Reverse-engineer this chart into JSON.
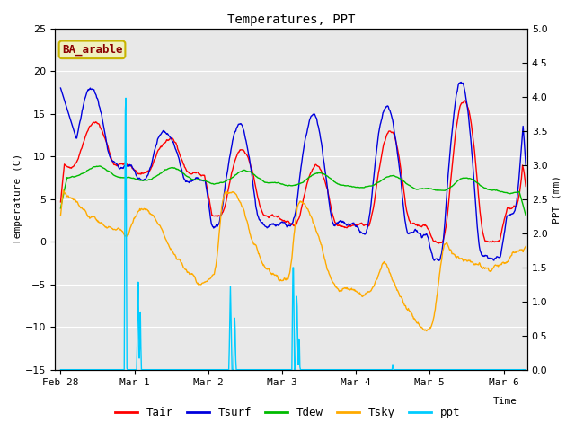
{
  "title": "Temperatures, PPT",
  "xlabel": "Time",
  "ylabel_left": "Temperature (C)",
  "ylabel_right": "PPT (mm)",
  "ylim_left": [
    -15,
    25
  ],
  "ylim_right": [
    0.0,
    5.0
  ],
  "yticks_left": [
    -15,
    -10,
    -5,
    0,
    5,
    10,
    15,
    20,
    25
  ],
  "yticks_right": [
    0.0,
    0.5,
    1.0,
    1.5,
    2.0,
    2.5,
    3.0,
    3.5,
    4.0,
    4.5,
    5.0
  ],
  "bg_color": "#e8e8e8",
  "site_label": "BA_arable",
  "site_label_color": "#8B0000",
  "site_label_bg": "#f0f0c0",
  "site_label_border": "#c8b400",
  "colors": {
    "Tair": "#ff0000",
    "Tsurf": "#0000dd",
    "Tdew": "#00bb00",
    "Tsky": "#ffaa00",
    "ppt": "#00ccff"
  },
  "lw": 1.0,
  "xtick_positions": [
    0,
    1,
    2,
    3,
    4,
    5,
    6
  ],
  "xtick_labels": [
    "Feb 28",
    "Mar 1",
    "Mar 2",
    "Mar 3",
    "Mar 4",
    "Mar 5",
    "Mar 6"
  ],
  "n_points": 864,
  "xlim": [
    -0.08,
    6.32
  ]
}
